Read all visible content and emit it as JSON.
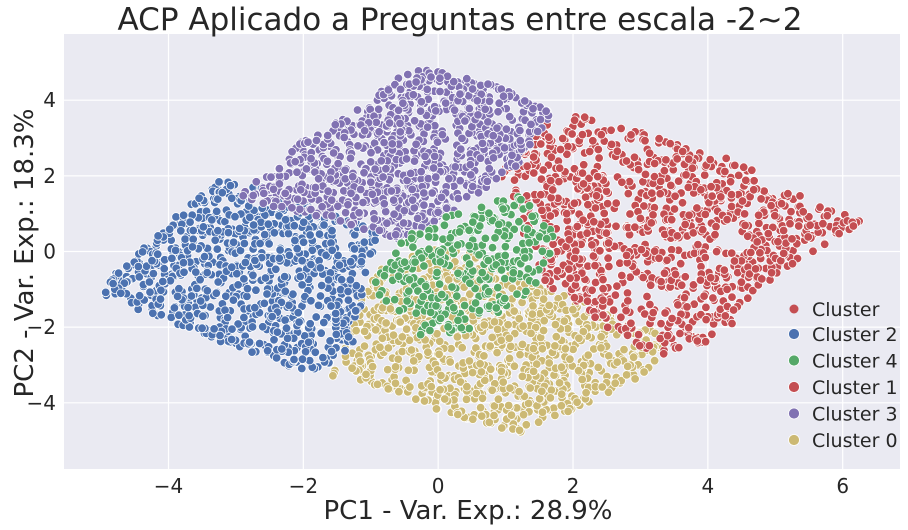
{
  "chart_data": {
    "type": "scatter",
    "title": "ACP Aplicado a Preguntas entre escala -2~2",
    "xlabel": "PC1 - Var. Exp.: 28.9%",
    "ylabel": "PC2 - Var. Exp.: 18.3%",
    "xlim": [
      -5.55,
      6.85
    ],
    "ylim": [
      -5.75,
      5.75
    ],
    "xticks": [
      -4,
      -2,
      0,
      2,
      4,
      6
    ],
    "yticks": [
      -4,
      -2,
      0,
      2,
      4
    ],
    "xtick_labels": [
      "−4",
      "−2",
      "0",
      "2",
      "4",
      "6"
    ],
    "ytick_labels": [
      "−4",
      "−2",
      "0",
      "2",
      "4"
    ],
    "grid": true,
    "legend_placement": "lower-right",
    "legend_title": "Cluster",
    "series": [
      {
        "name": "Cluster 2",
        "color": "#4c72b0",
        "region": [
          [
            -5.1,
            -1.1
          ],
          [
            -3.3,
            1.9
          ],
          [
            -2.4,
            1.7
          ],
          [
            -0.9,
            0.6
          ],
          [
            -1.2,
            -2.2
          ],
          [
            -1.4,
            -2.8
          ],
          [
            -1.9,
            -3.2
          ],
          [
            -2.6,
            -2.8
          ],
          [
            -3.8,
            -2.0
          ]
        ],
        "approx_points": 900
      },
      {
        "name": "Cluster 4",
        "color": "#55a868",
        "region": [
          [
            -1.0,
            -1.0
          ],
          [
            -0.6,
            0.3
          ],
          [
            0.2,
            1.0
          ],
          [
            1.2,
            1.5
          ],
          [
            1.8,
            0.4
          ],
          [
            1.4,
            -1.0
          ],
          [
            0.6,
            -2.0
          ],
          [
            -0.2,
            -2.3
          ]
        ],
        "approx_points": 320
      },
      {
        "name": "Cluster 1",
        "color": "#c44e52",
        "region": [
          [
            0.9,
            2.0
          ],
          [
            1.5,
            3.3
          ],
          [
            2.1,
            3.6
          ],
          [
            3.3,
            3.0
          ],
          [
            4.4,
            2.4
          ],
          [
            5.2,
            1.6
          ],
          [
            6.3,
            0.8
          ],
          [
            5.2,
            -0.4
          ],
          [
            4.2,
            -2.2
          ],
          [
            3.5,
            -2.8
          ],
          [
            2.8,
            -2.4
          ],
          [
            1.6,
            -0.9
          ]
        ],
        "approx_points": 1000
      },
      {
        "name": "Cluster 3",
        "color": "#8172b2",
        "region": [
          [
            -3.0,
            1.5
          ],
          [
            -2.0,
            3.0
          ],
          [
            -1.0,
            4.0
          ],
          [
            -0.4,
            4.9
          ],
          [
            0.9,
            4.4
          ],
          [
            1.7,
            3.7
          ],
          [
            1.2,
            2.3
          ],
          [
            0.2,
            1.0
          ],
          [
            -0.6,
            0.3
          ],
          [
            -1.5,
            0.8
          ],
          [
            -2.5,
            1.2
          ]
        ],
        "approx_points": 900
      },
      {
        "name": "Cluster 0",
        "color": "#ccb974",
        "region": [
          [
            -1.6,
            -3.3
          ],
          [
            -1.0,
            -0.6
          ],
          [
            0.0,
            0.2
          ],
          [
            1.0,
            -0.3
          ],
          [
            2.0,
            -1.2
          ],
          [
            3.5,
            -2.3
          ],
          [
            3.0,
            -3.4
          ],
          [
            2.1,
            -4.1
          ],
          [
            1.2,
            -4.8
          ],
          [
            0.0,
            -4.2
          ],
          [
            -1.0,
            -3.5
          ]
        ],
        "approx_points": 950
      }
    ]
  },
  "style": {
    "plot_bg": "#eaeaf2",
    "grid_color": "#ffffff",
    "point_edge": "#ffffff"
  }
}
